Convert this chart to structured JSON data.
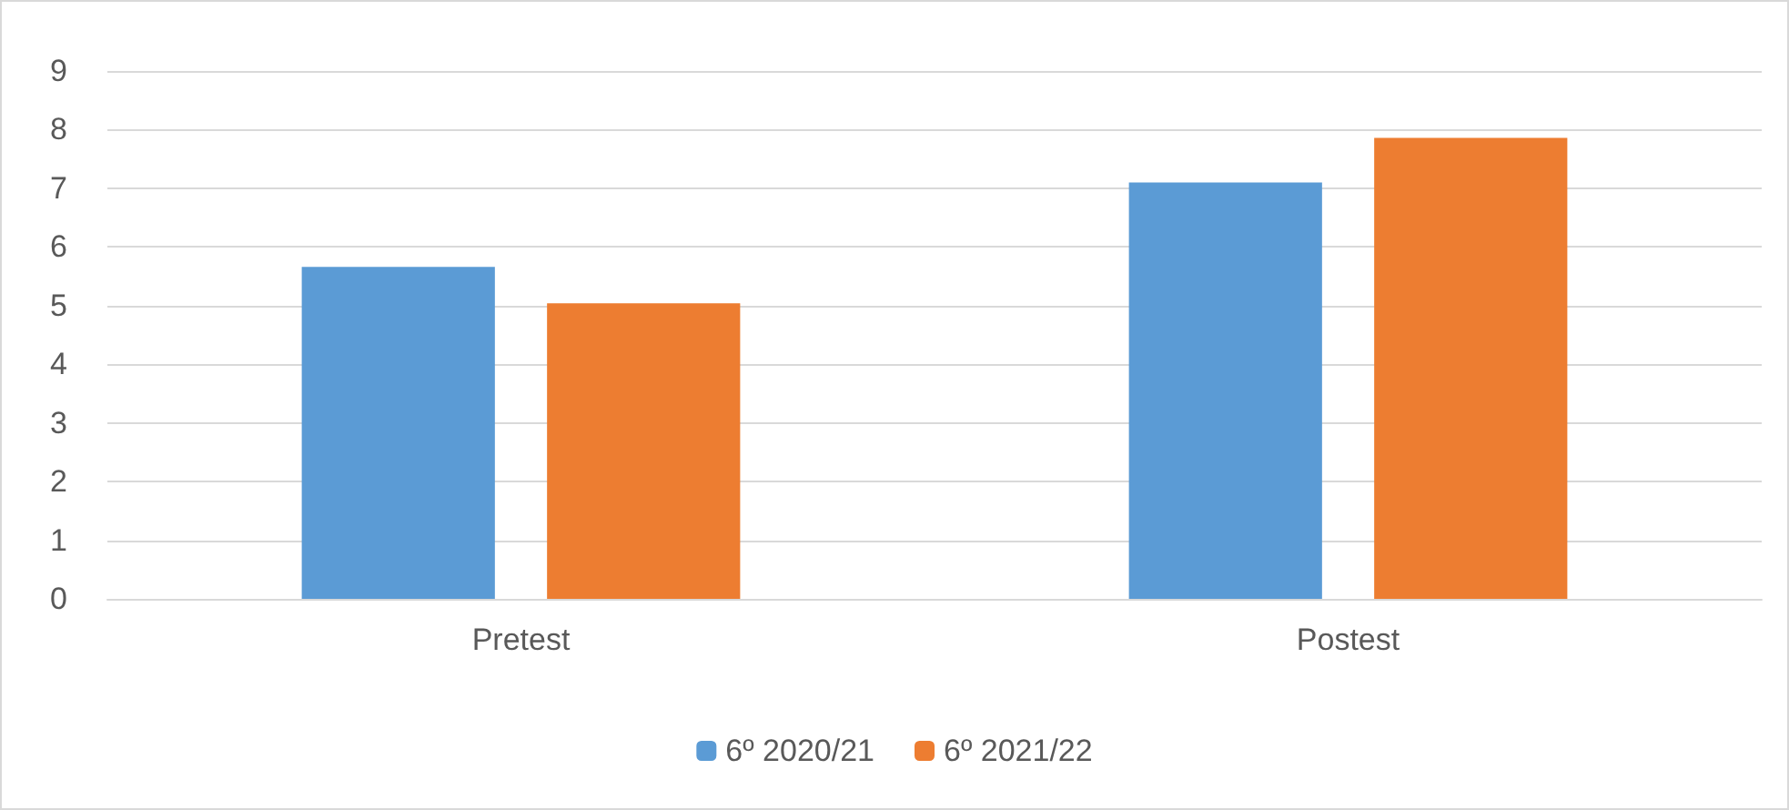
{
  "chart_data": {
    "type": "bar",
    "categories": [
      "Pretest",
      "Postest"
    ],
    "series": [
      {
        "name": "6º 2020/21",
        "color": "#5b9bd5",
        "values": [
          5.66,
          7.1
        ]
      },
      {
        "name": "6º 2021/22",
        "color": "#ed7d31",
        "values": [
          5.04,
          7.86
        ]
      }
    ],
    "ylim": [
      0,
      9
    ],
    "yticks": [
      0,
      1,
      2,
      3,
      4,
      5,
      6,
      7,
      8,
      9
    ],
    "grid": "y",
    "legend": "bottom"
  }
}
